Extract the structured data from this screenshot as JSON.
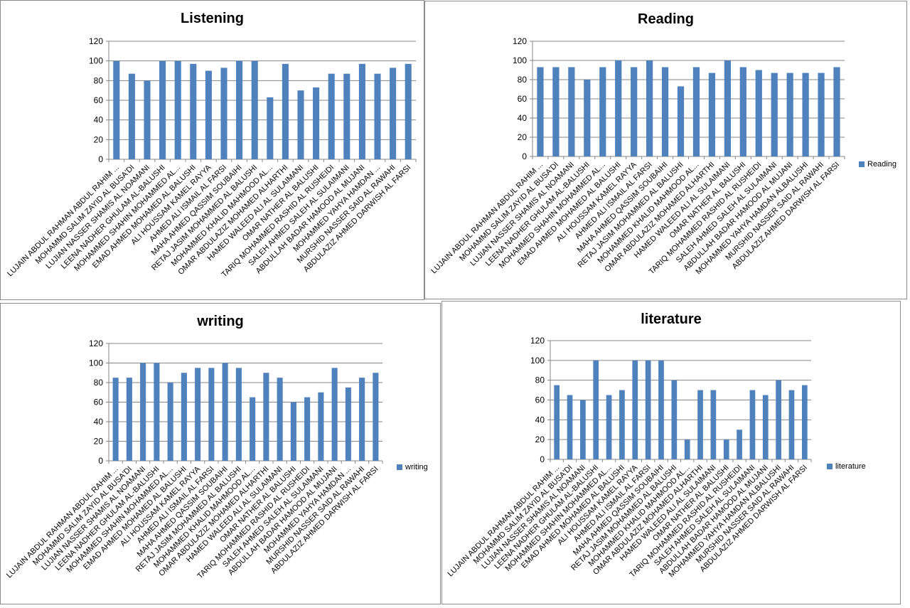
{
  "colors": {
    "bar": "#4f81bd",
    "grid": "#868686",
    "axis": "#868686"
  },
  "chart_data": [
    {
      "type": "bar",
      "title": "Listening",
      "legend": null,
      "ylim": [
        0,
        120
      ],
      "yticks": [
        0,
        20,
        40,
        60,
        80,
        100,
        120
      ],
      "grid": true,
      "categories": [
        "LUJAIN ABDUL RAHMAN ABDUL RAHIM ...",
        "MOHAMMD SALIM ZAYID AL BUSA'DI",
        "LUJIAN NASSER SHAMIS AL NOAMANI",
        "LEENA NADHER GHULAM AL-BALUSHI",
        "MOHAMMED SHAHIN MOHAMMED AL...",
        "EMAD AHMED MOHAMED AL BALUSHI",
        "ALI HOUSSAM KAMEL RAYYA",
        "AHMED ALI ISMAIL AL FARSI",
        "MAHA AHMED QASSIM SOUBAIHI",
        "RETAJ JASIM MOHAMMED AL BALUSHI",
        "MOHAMMED KHALID MAHMOOD AL...",
        "OMAR ABDULAZIZ MOHAMED ALHARTHI",
        "HAMED WALEED ALI AL SULAIMANI",
        "OMAR NATHER AL BALUSHI",
        "TARIQ MOHAMMED RASHID AL RUSHEIDI",
        "SALEH AHMED SALEH AL SULAIMANI",
        "ABDULLAH BADAR HAMOOD AL MUJANI",
        "MOHAMMED YAHYA HAMDAN ...",
        "MURSHID NASSER SAID AL RAWAHI",
        "ABDULAZIZ AHMED DARWISH AL FARSI"
      ],
      "values": [
        100,
        87,
        80,
        100,
        100,
        97,
        90,
        93,
        100,
        100,
        63,
        97,
        70,
        73,
        87,
        87,
        97,
        87,
        93,
        97
      ]
    },
    {
      "type": "bar",
      "title": "Reading",
      "legend": "right",
      "series_name": "Reading",
      "ylim": [
        0,
        120
      ],
      "yticks": [
        0,
        20,
        40,
        60,
        80,
        100,
        120
      ],
      "grid": true,
      "categories": [
        "LUJAIN ABDUL RAHMAN ABDUL RAHIM ...",
        "MOHAMMD SALIM ZAYID AL BUSA'DI",
        "LUJIAN NASSER SHAMIS AL NOAMANI",
        "LEENA NADHER GHULAM AL-BALUSHI",
        "MOHAMMED SHAHIN MOHAMMED AL...",
        "EMAD AHMED MOHAMED AL BALUSHI",
        "ALI HOUSSAM KAMEL RAYYA",
        "AHMED ALI ISMAIL AL FARSI",
        "MAHA AHMED QASSIM SOUBAIHI",
        "RETAJ JASIM MOHAMMED AL BALUSHI",
        "MOHAMMED KHALID MAHMOOD AL...",
        "OMAR ABDULAZIZ MOHAMED ALHARTHI",
        "HAMED WALEED ALI AL SULAIMANI",
        "OMAR NATHER AL BALUSHI",
        "TARIQ MOHAMMED RASHID AL RUSHEIDI",
        "SALEH AHMED SALEH AL SULAIMANI",
        "ABDULLAH BADAR HAMOOD AL MUJANI",
        "MOHAMMED YAHYA HAMDAN ALBALUSHI",
        "MURSHID NASSER SAID AL RAWAHI",
        "ABDULAZIZ AHMED DARWISH AL FARSI"
      ],
      "values": [
        93,
        93,
        93,
        80,
        93,
        100,
        93,
        100,
        93,
        73,
        93,
        87,
        100,
        93,
        90,
        87,
        87,
        87,
        87,
        93
      ]
    },
    {
      "type": "bar",
      "title": "writing",
      "legend": "right",
      "series_name": "writing",
      "ylim": [
        0,
        120
      ],
      "yticks": [
        0,
        20,
        40,
        60,
        80,
        100,
        120
      ],
      "grid": true,
      "categories": [
        "LUJAIN ABDUL RAHMAN ABDUL RAHIM ...",
        "MOHAMMD SALIM ZAYID AL BUSA'DI",
        "LUJIAN NASSER SHAMIS AL NOAMANI",
        "LEENA NADHER GHULAM AL-BALUSHI",
        "MOHAMMED SHAHIN MOHAMMED AL...",
        "EMAD AHMED MOHAMED AL BALUSHI",
        "ALI HOUSSAM KAMEL RAYYA",
        "AHMED ALI ISMAIL AL FARSI",
        "MAHA AHMED QASSIM SOUBAIHI",
        "RETAJ JASIM MOHAMMED AL BALUSHI",
        "MOHAMMED KHALID MAHMOOD AL...",
        "OMAR ABDULAZIZ MOHAMED ALHARTHI",
        "HAMED WALEED ALI AL SULAIMANI",
        "OMAR NATHER AL BALUSHI",
        "TARIQ MOHAMMED RASHID AL RUSHEIDI",
        "SALEH AHMED SALEH AL SULAIMANI",
        "ABDULLAH BADAR HAMOOD AL MUJANI",
        "MOHAMMED YAHYA HAMDAN ...",
        "MURSHID NASSER SAID AL RAWAHI",
        "ABDULAZIZ AHMED DARWISH AL FARSI"
      ],
      "values": [
        85,
        85,
        100,
        100,
        80,
        90,
        95,
        95,
        100,
        95,
        65,
        90,
        85,
        60,
        65,
        70,
        95,
        75,
        85,
        90
      ]
    },
    {
      "type": "bar",
      "title": "literature",
      "legend": "right",
      "series_name": "literature",
      "ylim": [
        0,
        120
      ],
      "yticks": [
        0,
        20,
        40,
        60,
        80,
        100,
        120
      ],
      "grid": true,
      "categories": [
        "LUJAIN ABDUL RAHMAN ABDUL RAHIM ...",
        "MOHAMMD SALIM ZAYID AL BUSA'DI",
        "LUJIAN NASSER SHAMIS AL NOAMANI",
        "LEENA NADHER GHULAM AL-BALUSHI",
        "MOHAMMED SHAHIN MOHAMMED AL...",
        "EMAD AHMED MOHAMED AL BALUSHI",
        "ALI HOUSSAM KAMEL RAYYA",
        "AHMED ALI ISMAIL AL FARSI",
        "MAHA AHMED QASSIM SOUBAIHI",
        "RETAJ JASIM MOHAMMED AL BALUSHI",
        "MOHAMMED KHALID MAHMOOD AL...",
        "OMAR ABDULAZIZ MOHAMED ALHARTHI",
        "HAMED WALEED ALI AL SULAIMANI",
        "OMAR NATHER AL BALUSHI",
        "TARIQ MOHAMMED RASHID AL RUSHEIDI",
        "SALEH AHMED SALEH AL SULAIMANI",
        "ABDULLAH BADAR HAMOOD AL MUJANI",
        "MOHAMMED YAHYA HAMDAN ALBALUSHI",
        "MURSHID NASSER SAID AL RAWAHI",
        "ABDULAZIZ AHMED DARWISH AL FARSI"
      ],
      "values": [
        75,
        65,
        60,
        100,
        65,
        70,
        100,
        100,
        100,
        80,
        20,
        70,
        70,
        20,
        30,
        70,
        65,
        80,
        70,
        75
      ]
    }
  ]
}
